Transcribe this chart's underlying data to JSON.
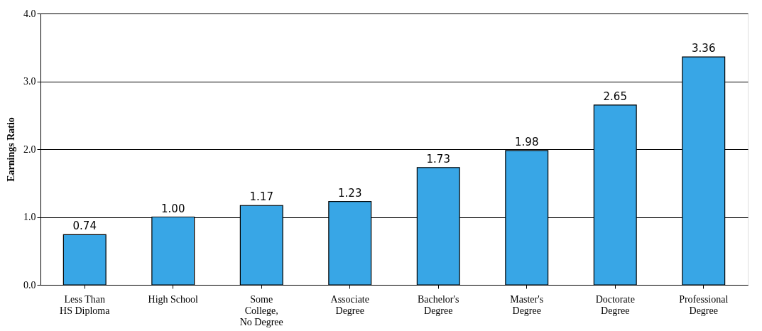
{
  "chart_data": {
    "type": "bar",
    "categories": [
      "Less Than\nHS Diploma",
      "High School",
      "Some\nCollege,\nNo Degree",
      "Associate\nDegree",
      "Bachelor's\nDegree",
      "Master's\nDegree",
      "Doctorate\nDegree",
      "Professional\nDegree"
    ],
    "values": [
      0.74,
      1.0,
      1.17,
      1.23,
      1.73,
      1.98,
      2.65,
      3.36
    ],
    "value_labels": [
      "0.74",
      "1.00",
      "1.17",
      "1.23",
      "1.73",
      "1.98",
      "2.65",
      "3.36"
    ],
    "color": "#38a6e6",
    "ylabel": "Earnings Ratio",
    "ylim": [
      0,
      4
    ],
    "yticks": [
      {
        "value": 0,
        "label": "0.0"
      },
      {
        "value": 1,
        "label": "1.0"
      },
      {
        "value": 2,
        "label": "2.0"
      },
      {
        "value": 3,
        "label": "3.0"
      },
      {
        "value": 4,
        "label": "4.0"
      }
    ],
    "grid": "y"
  }
}
